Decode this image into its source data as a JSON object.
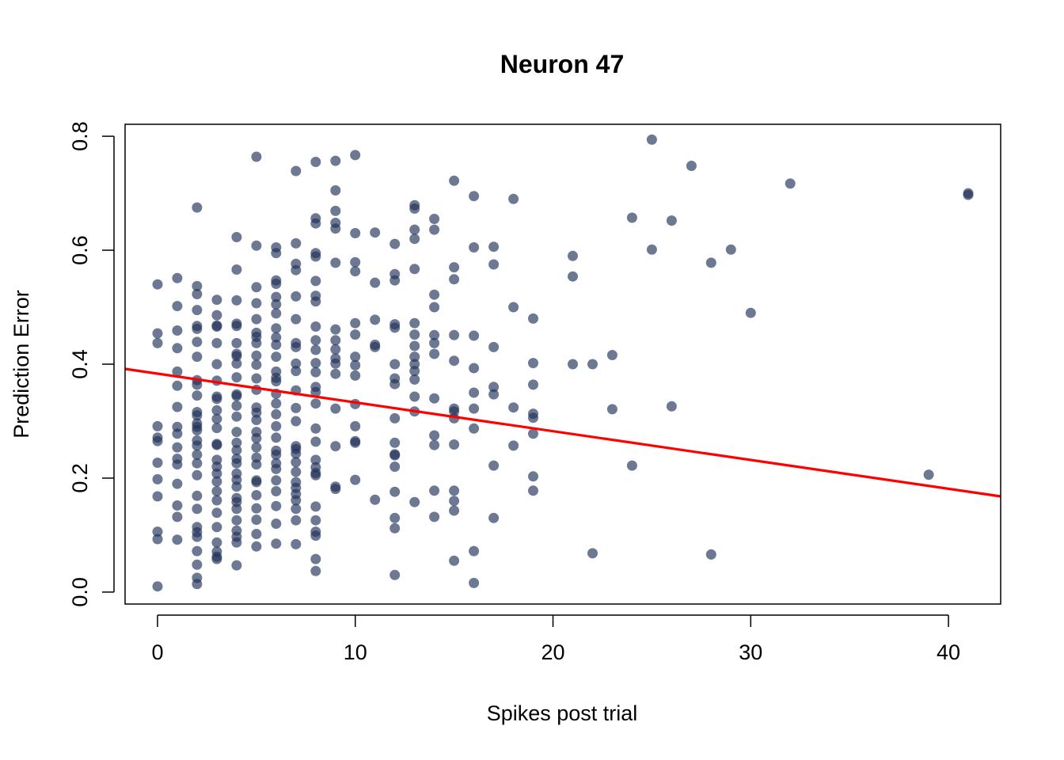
{
  "chart_data": {
    "type": "scatter",
    "title": "Neuron 47",
    "xlabel": "Spikes post trial",
    "ylabel": "Prediction Error",
    "xlim": [
      -1.64,
      42.64
    ],
    "ylim": [
      -0.021,
      0.821
    ],
    "xticks": [
      0,
      10,
      20,
      30,
      40
    ],
    "yticks": [
      0.0,
      0.2,
      0.4,
      0.6,
      0.8
    ],
    "xtick_labels": [
      "0",
      "10",
      "20",
      "30",
      "40"
    ],
    "ytick_labels": [
      "0.0",
      "0.2",
      "0.4",
      "0.6",
      "0.8"
    ],
    "grid": false,
    "legend": "none",
    "point_color": "#1f2f58",
    "line_color": "#ff0000",
    "regression": {
      "intercept": 0.3834,
      "slope": -0.005051
    },
    "points": [
      [
        0,
        0.54
      ],
      [
        0,
        0.454
      ],
      [
        0,
        0.437
      ],
      [
        0,
        0.291
      ],
      [
        0,
        0.271
      ],
      [
        0,
        0.265
      ],
      [
        0,
        0.227
      ],
      [
        0,
        0.198
      ],
      [
        0,
        0.168
      ],
      [
        0,
        0.106
      ],
      [
        0,
        0.093
      ],
      [
        0,
        0.01
      ],
      [
        1,
        0.551
      ],
      [
        1,
        0.502
      ],
      [
        1,
        0.459
      ],
      [
        1,
        0.428
      ],
      [
        1,
        0.387
      ],
      [
        1,
        0.362
      ],
      [
        1,
        0.325
      ],
      [
        1,
        0.29
      ],
      [
        1,
        0.278
      ],
      [
        1,
        0.254
      ],
      [
        1,
        0.234
      ],
      [
        1,
        0.224
      ],
      [
        1,
        0.19
      ],
      [
        1,
        0.152
      ],
      [
        1,
        0.132
      ],
      [
        1,
        0.092
      ],
      [
        2,
        0.675
      ],
      [
        2,
        0.537
      ],
      [
        2,
        0.523
      ],
      [
        2,
        0.495
      ],
      [
        2,
        0.467
      ],
      [
        2,
        0.462
      ],
      [
        2,
        0.439
      ],
      [
        2,
        0.413
      ],
      [
        2,
        0.372
      ],
      [
        2,
        0.364
      ],
      [
        2,
        0.345
      ],
      [
        2,
        0.316
      ],
      [
        2,
        0.31
      ],
      [
        2,
        0.296
      ],
      [
        2,
        0.29
      ],
      [
        2,
        0.284
      ],
      [
        2,
        0.266
      ],
      [
        2,
        0.257
      ],
      [
        2,
        0.241
      ],
      [
        2,
        0.226
      ],
      [
        2,
        0.205
      ],
      [
        2,
        0.169
      ],
      [
        2,
        0.146
      ],
      [
        2,
        0.114
      ],
      [
        2,
        0.105
      ],
      [
        2,
        0.097
      ],
      [
        2,
        0.072
      ],
      [
        2,
        0.048
      ],
      [
        2,
        0.025
      ],
      [
        2,
        0.014
      ],
      [
        3,
        0.513
      ],
      [
        3,
        0.486
      ],
      [
        3,
        0.468
      ],
      [
        3,
        0.466
      ],
      [
        3,
        0.437
      ],
      [
        3,
        0.4
      ],
      [
        3,
        0.371
      ],
      [
        3,
        0.343
      ],
      [
        3,
        0.339
      ],
      [
        3,
        0.319
      ],
      [
        3,
        0.304
      ],
      [
        3,
        0.288
      ],
      [
        3,
        0.26
      ],
      [
        3,
        0.258
      ],
      [
        3,
        0.232
      ],
      [
        3,
        0.22
      ],
      [
        3,
        0.208
      ],
      [
        3,
        0.194
      ],
      [
        3,
        0.177
      ],
      [
        3,
        0.161
      ],
      [
        3,
        0.139
      ],
      [
        3,
        0.114
      ],
      [
        3,
        0.087
      ],
      [
        3,
        0.071
      ],
      [
        3,
        0.062
      ],
      [
        3,
        0.058
      ],
      [
        4,
        0.623
      ],
      [
        4,
        0.566
      ],
      [
        4,
        0.512
      ],
      [
        4,
        0.471
      ],
      [
        4,
        0.467
      ],
      [
        4,
        0.437
      ],
      [
        4,
        0.418
      ],
      [
        4,
        0.414
      ],
      [
        4,
        0.401
      ],
      [
        4,
        0.377
      ],
      [
        4,
        0.347
      ],
      [
        4,
        0.344
      ],
      [
        4,
        0.327
      ],
      [
        4,
        0.308
      ],
      [
        4,
        0.281
      ],
      [
        4,
        0.262
      ],
      [
        4,
        0.249
      ],
      [
        4,
        0.234
      ],
      [
        4,
        0.226
      ],
      [
        4,
        0.208
      ],
      [
        4,
        0.197
      ],
      [
        4,
        0.185
      ],
      [
        4,
        0.165
      ],
      [
        4,
        0.158
      ],
      [
        4,
        0.146
      ],
      [
        4,
        0.126
      ],
      [
        4,
        0.108
      ],
      [
        4,
        0.097
      ],
      [
        4,
        0.087
      ],
      [
        4,
        0.047
      ],
      [
        5,
        0.764
      ],
      [
        5,
        0.608
      ],
      [
        5,
        0.535
      ],
      [
        5,
        0.507
      ],
      [
        5,
        0.479
      ],
      [
        5,
        0.455
      ],
      [
        5,
        0.448
      ],
      [
        5,
        0.437
      ],
      [
        5,
        0.415
      ],
      [
        5,
        0.399
      ],
      [
        5,
        0.375
      ],
      [
        5,
        0.355
      ],
      [
        5,
        0.324
      ],
      [
        5,
        0.315
      ],
      [
        5,
        0.302
      ],
      [
        5,
        0.281
      ],
      [
        5,
        0.27
      ],
      [
        5,
        0.254
      ],
      [
        5,
        0.236
      ],
      [
        5,
        0.224
      ],
      [
        5,
        0.196
      ],
      [
        5,
        0.193
      ],
      [
        5,
        0.17
      ],
      [
        5,
        0.147
      ],
      [
        5,
        0.127
      ],
      [
        5,
        0.102
      ],
      [
        5,
        0.08
      ],
      [
        6,
        0.605
      ],
      [
        6,
        0.595
      ],
      [
        6,
        0.547
      ],
      [
        6,
        0.541
      ],
      [
        6,
        0.518
      ],
      [
        6,
        0.505
      ],
      [
        6,
        0.489
      ],
      [
        6,
        0.463
      ],
      [
        6,
        0.447
      ],
      [
        6,
        0.434
      ],
      [
        6,
        0.413
      ],
      [
        6,
        0.387
      ],
      [
        6,
        0.376
      ],
      [
        6,
        0.37
      ],
      [
        6,
        0.348
      ],
      [
        6,
        0.331
      ],
      [
        6,
        0.312
      ],
      [
        6,
        0.291
      ],
      [
        6,
        0.271
      ],
      [
        6,
        0.248
      ],
      [
        6,
        0.241
      ],
      [
        6,
        0.226
      ],
      [
        6,
        0.216
      ],
      [
        6,
        0.196
      ],
      [
        6,
        0.177
      ],
      [
        6,
        0.151
      ],
      [
        6,
        0.12
      ],
      [
        6,
        0.085
      ],
      [
        7,
        0.739
      ],
      [
        7,
        0.612
      ],
      [
        7,
        0.576
      ],
      [
        7,
        0.565
      ],
      [
        7,
        0.519
      ],
      [
        7,
        0.479
      ],
      [
        7,
        0.437
      ],
      [
        7,
        0.43
      ],
      [
        7,
        0.401
      ],
      [
        7,
        0.388
      ],
      [
        7,
        0.354
      ],
      [
        7,
        0.323
      ],
      [
        7,
        0.3
      ],
      [
        7,
        0.256
      ],
      [
        7,
        0.251
      ],
      [
        7,
        0.243
      ],
      [
        7,
        0.228
      ],
      [
        7,
        0.211
      ],
      [
        7,
        0.193
      ],
      [
        7,
        0.183
      ],
      [
        7,
        0.172
      ],
      [
        7,
        0.161
      ],
      [
        7,
        0.146
      ],
      [
        7,
        0.126
      ],
      [
        7,
        0.084
      ],
      [
        8,
        0.755
      ],
      [
        8,
        0.656
      ],
      [
        8,
        0.647
      ],
      [
        8,
        0.595
      ],
      [
        8,
        0.589
      ],
      [
        8,
        0.546
      ],
      [
        8,
        0.52
      ],
      [
        8,
        0.51
      ],
      [
        8,
        0.466
      ],
      [
        8,
        0.442
      ],
      [
        8,
        0.425
      ],
      [
        8,
        0.402
      ],
      [
        8,
        0.386
      ],
      [
        8,
        0.36
      ],
      [
        8,
        0.351
      ],
      [
        8,
        0.331
      ],
      [
        8,
        0.287
      ],
      [
        8,
        0.264
      ],
      [
        8,
        0.232
      ],
      [
        8,
        0.219
      ],
      [
        8,
        0.209
      ],
      [
        8,
        0.205
      ],
      [
        8,
        0.15
      ],
      [
        8,
        0.126
      ],
      [
        8,
        0.106
      ],
      [
        8,
        0.099
      ],
      [
        8,
        0.058
      ],
      [
        8,
        0.037
      ],
      [
        9,
        0.757
      ],
      [
        9,
        0.705
      ],
      [
        9,
        0.669
      ],
      [
        9,
        0.648
      ],
      [
        9,
        0.638
      ],
      [
        9,
        0.578
      ],
      [
        9,
        0.461
      ],
      [
        9,
        0.442
      ],
      [
        9,
        0.426
      ],
      [
        9,
        0.41
      ],
      [
        9,
        0.401
      ],
      [
        9,
        0.383
      ],
      [
        9,
        0.322
      ],
      [
        9,
        0.256
      ],
      [
        9,
        0.185
      ],
      [
        9,
        0.181
      ],
      [
        10,
        0.767
      ],
      [
        10,
        0.63
      ],
      [
        10,
        0.579
      ],
      [
        10,
        0.563
      ],
      [
        10,
        0.472
      ],
      [
        10,
        0.452
      ],
      [
        10,
        0.413
      ],
      [
        10,
        0.398
      ],
      [
        10,
        0.38
      ],
      [
        10,
        0.33
      ],
      [
        10,
        0.291
      ],
      [
        10,
        0.265
      ],
      [
        10,
        0.262
      ],
      [
        10,
        0.197
      ],
      [
        11,
        0.631
      ],
      [
        11,
        0.543
      ],
      [
        11,
        0.478
      ],
      [
        11,
        0.434
      ],
      [
        11,
        0.43
      ],
      [
        11,
        0.162
      ],
      [
        12,
        0.611
      ],
      [
        12,
        0.558
      ],
      [
        12,
        0.547
      ],
      [
        12,
        0.47
      ],
      [
        12,
        0.464
      ],
      [
        12,
        0.4
      ],
      [
        12,
        0.375
      ],
      [
        12,
        0.365
      ],
      [
        12,
        0.305
      ],
      [
        12,
        0.262
      ],
      [
        12,
        0.242
      ],
      [
        12,
        0.24
      ],
      [
        12,
        0.22
      ],
      [
        12,
        0.176
      ],
      [
        12,
        0.13
      ],
      [
        12,
        0.112
      ],
      [
        12,
        0.03
      ],
      [
        13,
        0.679
      ],
      [
        13,
        0.673
      ],
      [
        13,
        0.636
      ],
      [
        13,
        0.62
      ],
      [
        13,
        0.567
      ],
      [
        13,
        0.472
      ],
      [
        13,
        0.452
      ],
      [
        13,
        0.432
      ],
      [
        13,
        0.413
      ],
      [
        13,
        0.4
      ],
      [
        13,
        0.388
      ],
      [
        13,
        0.373
      ],
      [
        13,
        0.343
      ],
      [
        13,
        0.317
      ],
      [
        13,
        0.158
      ],
      [
        14,
        0.655
      ],
      [
        14,
        0.636
      ],
      [
        14,
        0.522
      ],
      [
        14,
        0.5
      ],
      [
        14,
        0.451
      ],
      [
        14,
        0.437
      ],
      [
        14,
        0.418
      ],
      [
        14,
        0.34
      ],
      [
        14,
        0.275
      ],
      [
        14,
        0.258
      ],
      [
        14,
        0.178
      ],
      [
        14,
        0.132
      ],
      [
        15,
        0.722
      ],
      [
        15,
        0.57
      ],
      [
        15,
        0.549
      ],
      [
        15,
        0.451
      ],
      [
        15,
        0.406
      ],
      [
        15,
        0.322
      ],
      [
        15,
        0.317
      ],
      [
        15,
        0.305
      ],
      [
        15,
        0.259
      ],
      [
        15,
        0.178
      ],
      [
        15,
        0.16
      ],
      [
        15,
        0.143
      ],
      [
        15,
        0.055
      ],
      [
        16,
        0.695
      ],
      [
        16,
        0.605
      ],
      [
        16,
        0.45
      ],
      [
        16,
        0.393
      ],
      [
        16,
        0.35
      ],
      [
        16,
        0.322
      ],
      [
        16,
        0.287
      ],
      [
        16,
        0.072
      ],
      [
        16,
        0.016
      ],
      [
        17,
        0.606
      ],
      [
        17,
        0.575
      ],
      [
        17,
        0.43
      ],
      [
        17,
        0.36
      ],
      [
        17,
        0.347
      ],
      [
        17,
        0.222
      ],
      [
        17,
        0.13
      ],
      [
        18,
        0.69
      ],
      [
        18,
        0.5
      ],
      [
        18,
        0.324
      ],
      [
        18,
        0.257
      ],
      [
        19,
        0.48
      ],
      [
        19,
        0.402
      ],
      [
        19,
        0.364
      ],
      [
        19,
        0.313
      ],
      [
        19,
        0.306
      ],
      [
        19,
        0.278
      ],
      [
        19,
        0.203
      ],
      [
        19,
        0.178
      ],
      [
        21,
        0.59
      ],
      [
        21,
        0.554
      ],
      [
        21,
        0.4
      ],
      [
        22,
        0.4
      ],
      [
        22,
        0.068
      ],
      [
        23,
        0.416
      ],
      [
        23,
        0.321
      ],
      [
        24,
        0.657
      ],
      [
        24,
        0.222
      ],
      [
        25,
        0.794
      ],
      [
        25,
        0.601
      ],
      [
        26,
        0.652
      ],
      [
        26,
        0.326
      ],
      [
        27,
        0.748
      ],
      [
        28,
        0.578
      ],
      [
        28,
        0.066
      ],
      [
        29,
        0.601
      ],
      [
        30,
        0.49
      ],
      [
        32,
        0.717
      ],
      [
        39,
        0.206
      ],
      [
        41,
        0.7
      ],
      [
        41,
        0.697
      ]
    ]
  }
}
